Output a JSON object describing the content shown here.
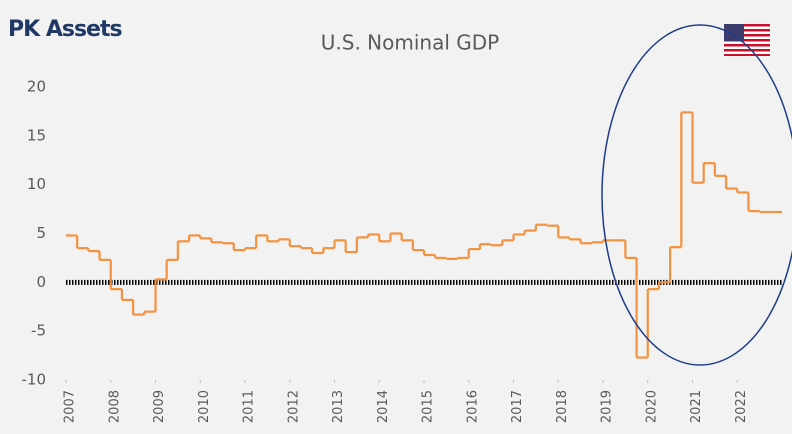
{
  "brand": "PK Assets",
  "chart_data": {
    "type": "line",
    "title": "U.S. Nominal GDP",
    "step": true,
    "x": [
      2007,
      2007.25,
      2007.5,
      2007.75,
      2008,
      2008.25,
      2008.5,
      2008.75,
      2009,
      2009.25,
      2009.5,
      2009.75,
      2010,
      2010.25,
      2010.5,
      2010.75,
      2011,
      2011.25,
      2011.5,
      2011.75,
      2012,
      2012.25,
      2012.5,
      2012.75,
      2013,
      2013.25,
      2013.5,
      2013.75,
      2014,
      2014.25,
      2014.5,
      2014.75,
      2015,
      2015.25,
      2015.5,
      2015.75,
      2016,
      2016.25,
      2016.5,
      2016.75,
      2017,
      2017.25,
      2017.5,
      2017.75,
      2018,
      2018.25,
      2018.5,
      2018.75,
      2019,
      2019.25,
      2019.5,
      2019.75,
      2020,
      2020.25,
      2020.5,
      2020.75,
      2021,
      2021.25,
      2021.5,
      2021.75,
      2022,
      2022.25,
      2022.5,
      2022.75
    ],
    "series": [
      {
        "name": "U.S. Nominal GDP",
        "color": "#f4913e",
        "values": [
          4.8,
          3.5,
          3.2,
          2.3,
          -0.7,
          -1.8,
          -3.3,
          -3.0,
          0.3,
          2.3,
          4.2,
          4.8,
          4.5,
          4.1,
          4.0,
          3.3,
          3.5,
          4.8,
          4.2,
          4.4,
          3.7,
          3.5,
          3.0,
          3.5,
          4.3,
          3.1,
          4.6,
          4.9,
          4.2,
          5.0,
          4.3,
          3.3,
          2.8,
          2.5,
          2.4,
          2.5,
          3.4,
          3.9,
          3.8,
          4.3,
          4.9,
          5.3,
          5.9,
          5.8,
          4.6,
          4.4,
          4.0,
          4.1,
          4.3,
          4.3,
          2.5,
          -7.7,
          -0.7,
          0.0,
          3.6,
          17.4,
          10.2,
          12.2,
          10.9,
          9.6,
          9.2,
          7.3,
          7.2,
          7.2
        ]
      }
    ],
    "xlim": [
      2007,
      2023
    ],
    "xticks": [
      2007,
      2008,
      2009,
      2010,
      2011,
      2012,
      2013,
      2014,
      2015,
      2016,
      2017,
      2018,
      2019,
      2020,
      2021,
      2022
    ],
    "ylim": [
      -10,
      20
    ],
    "yticks": [
      -10,
      -5,
      0,
      5,
      10,
      15,
      20
    ],
    "grid": false
  }
}
